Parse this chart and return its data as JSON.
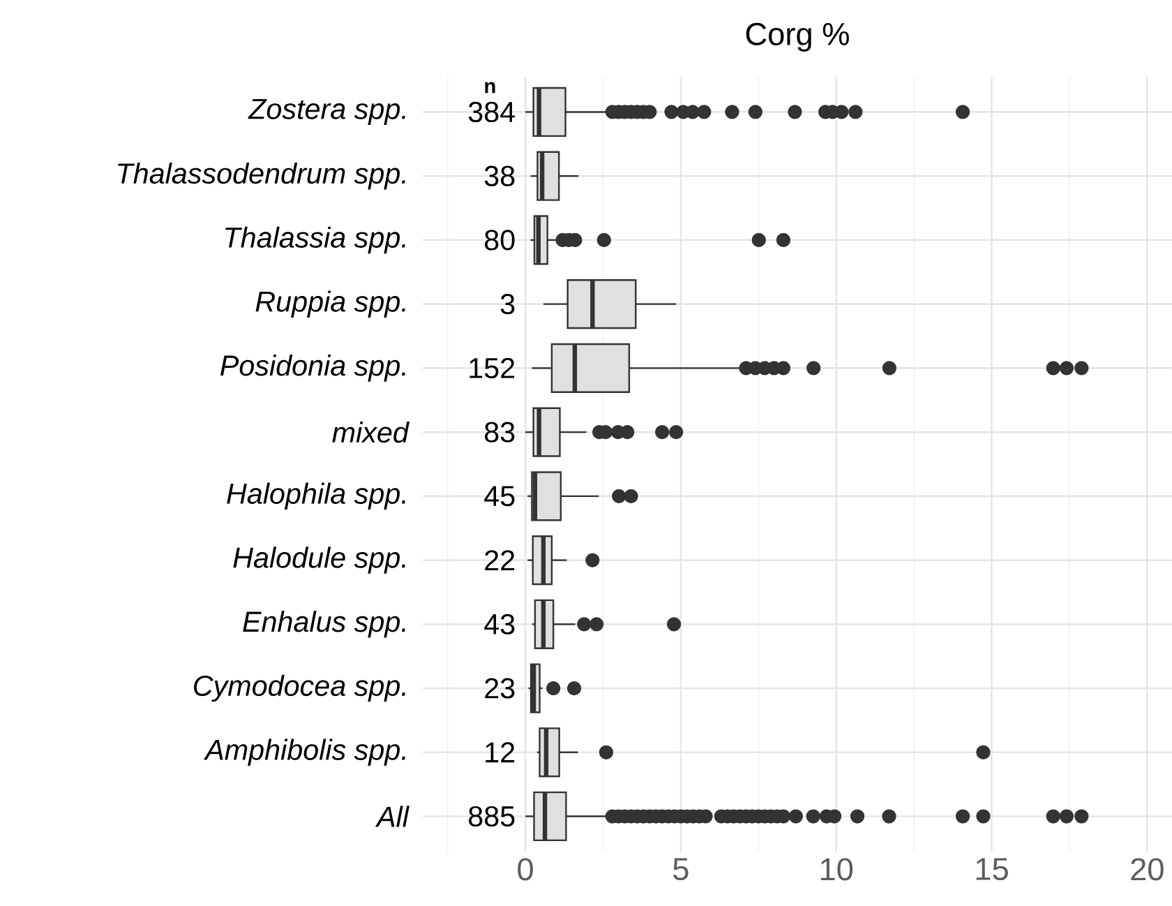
{
  "chart_data": {
    "type": "box",
    "orientation": "horizontal",
    "title": "Corg %",
    "categories": [
      "Zostera spp.",
      "Thalassodendrum spp.",
      "Thalassia spp.",
      "Ruppia spp.",
      "Posidonia spp.",
      "mixed",
      "Halophila spp.",
      "Halodule spp.",
      "Enhalus spp.",
      "Cymodocea spp.",
      "Amphibolis spp.",
      "All"
    ],
    "boxes": [
      {
        "low": 0.0,
        "q1": 0.26,
        "median": 0.44,
        "q3": 1.29,
        "high": 2.68,
        "outliers": [
          2.8,
          3.0,
          3.2,
          3.4,
          3.6,
          3.8,
          4.0,
          4.7,
          5.08,
          5.38,
          5.75,
          6.65,
          7.4,
          8.67,
          9.65,
          9.88,
          10.17,
          10.62,
          14.07
        ]
      },
      {
        "low": 0.17,
        "q1": 0.39,
        "median": 0.54,
        "q3": 1.08,
        "high": 1.71
      },
      {
        "low": 0.17,
        "q1": 0.29,
        "median": 0.42,
        "q3": 0.71,
        "high": 1.11,
        "outliers": [
          1.2,
          1.4,
          1.6,
          2.53,
          7.51,
          8.3
        ]
      },
      {
        "low": 0.58,
        "q1": 1.36,
        "median": 2.16,
        "q3": 3.55,
        "high": 4.85
      },
      {
        "low": 0.21,
        "q1": 0.85,
        "median": 1.59,
        "q3": 3.34,
        "high": 6.95,
        "outliers": [
          7.1,
          7.4,
          7.7,
          8.0,
          8.3,
          9.27,
          11.71,
          16.98,
          17.41,
          17.89
        ]
      },
      {
        "low": 0.0,
        "q1": 0.26,
        "median": 0.44,
        "q3": 1.11,
        "high": 1.96,
        "outliers": [
          2.38,
          2.58,
          2.98,
          3.28,
          4.4,
          4.85
        ]
      },
      {
        "low": 0.07,
        "q1": 0.21,
        "median": 0.31,
        "q3": 1.14,
        "high": 2.36,
        "outliers": [
          3.01,
          3.4
        ]
      },
      {
        "low": 0.07,
        "q1": 0.24,
        "median": 0.58,
        "q3": 0.85,
        "high": 1.33,
        "outliers": [
          2.16
        ]
      },
      {
        "low": 0.22,
        "q1": 0.31,
        "median": 0.58,
        "q3": 0.9,
        "high": 1.61,
        "outliers": [
          1.89,
          2.29,
          4.78
        ]
      },
      {
        "low": 0.1,
        "q1": 0.18,
        "median": 0.27,
        "q3": 0.46,
        "high": 0.55,
        "outliers": [
          0.9,
          1.57
        ]
      },
      {
        "low": 0.38,
        "q1": 0.46,
        "median": 0.67,
        "q3": 1.09,
        "high": 1.69,
        "outliers": [
          2.6,
          14.73
        ]
      },
      {
        "low": 0.0,
        "q1": 0.28,
        "median": 0.63,
        "q3": 1.31,
        "high": 2.68,
        "outliers": [
          2.8,
          3.0,
          3.2,
          3.4,
          3.6,
          3.8,
          4.0,
          4.2,
          4.4,
          4.6,
          4.8,
          5.0,
          5.2,
          5.4,
          5.6,
          5.8,
          6.3,
          6.5,
          6.7,
          6.9,
          7.1,
          7.3,
          7.5,
          7.7,
          7.9,
          8.1,
          8.3,
          8.7,
          9.26,
          9.69,
          9.94,
          10.68,
          11.7,
          14.07,
          14.73,
          16.98,
          17.41,
          17.89
        ]
      }
    ],
    "color": "#e0e0e0",
    "xlim": [
      -3.3,
      20.8
    ],
    "xticks": [
      0,
      5,
      10,
      15,
      20
    ],
    "grid": true,
    "annotations": [
      "n",
      "384",
      "38",
      "80",
      "3",
      "152",
      "83",
      "45",
      "22",
      "43",
      "23",
      "12",
      "885"
    ]
  }
}
